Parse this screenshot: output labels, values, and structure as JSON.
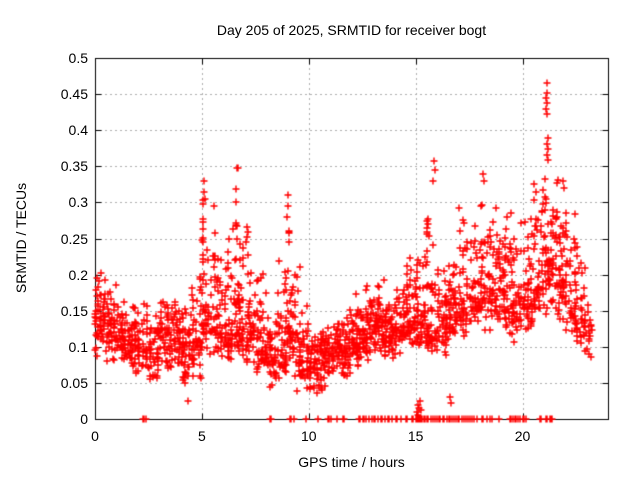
{
  "chart_data": {
    "type": "scatter",
    "title": "Day 205 of 2025, SRMTID for receiver bogt",
    "xlabel": "GPS time / hours",
    "ylabel": "SRMTID / TECUs",
    "xlim": [
      0,
      24
    ],
    "ylim": [
      0,
      0.5
    ],
    "grid": true,
    "legend": "none",
    "marker": "plus",
    "marker_color": "#ff0000",
    "axis_color": "#000000",
    "grid_color": "#b0b0b0",
    "background_color": "#ffffff",
    "seed": 42,
    "xticks": [
      {
        "v": 0,
        "label": "0"
      },
      {
        "v": 5,
        "label": "5"
      },
      {
        "v": 10,
        "label": "10"
      },
      {
        "v": 15,
        "label": "15"
      },
      {
        "v": 20,
        "label": "20"
      }
    ],
    "yticks": [
      {
        "v": 0,
        "label": "0"
      },
      {
        "v": 0.05,
        "label": "0.05"
      },
      {
        "v": 0.1,
        "label": "0.1"
      },
      {
        "v": 0.15,
        "label": "0.15"
      },
      {
        "v": 0.2,
        "label": "0.2"
      },
      {
        "v": 0.25,
        "label": "0.25"
      },
      {
        "v": 0.3,
        "label": "0.3"
      },
      {
        "v": 0.35,
        "label": "0.35"
      },
      {
        "v": 0.4,
        "label": "0.4"
      },
      {
        "v": 0.45,
        "label": "0.45"
      },
      {
        "v": 0.5,
        "label": "0.5"
      }
    ],
    "clusters_note": "dense scatter of ~2200 points; each cluster bin = [x_start_hr, x_end_hr, count, y_min, y_mode, y_max, spike_column_flag] in TECUs",
    "clusters": [
      [
        0.0,
        0.5,
        55,
        0.08,
        0.14,
        0.21,
        0
      ],
      [
        0.5,
        1.0,
        50,
        0.07,
        0.12,
        0.19,
        0
      ],
      [
        1.0,
        1.5,
        45,
        0.07,
        0.11,
        0.17,
        0
      ],
      [
        1.5,
        2.0,
        45,
        0.06,
        0.1,
        0.16,
        0
      ],
      [
        2.0,
        2.5,
        40,
        0.05,
        0.1,
        0.17,
        0
      ],
      [
        2.5,
        3.0,
        40,
        0.05,
        0.09,
        0.15,
        0
      ],
      [
        3.0,
        3.5,
        45,
        0.06,
        0.12,
        0.17,
        0
      ],
      [
        3.5,
        4.0,
        45,
        0.06,
        0.12,
        0.18,
        0
      ],
      [
        4.0,
        4.5,
        45,
        0.04,
        0.09,
        0.16,
        0
      ],
      [
        4.5,
        5.0,
        45,
        0.05,
        0.11,
        0.24,
        0
      ],
      [
        5.0,
        5.5,
        55,
        0.08,
        0.14,
        0.32,
        1
      ],
      [
        5.5,
        6.0,
        50,
        0.08,
        0.13,
        0.3,
        1
      ],
      [
        6.0,
        6.5,
        50,
        0.06,
        0.12,
        0.27,
        0
      ],
      [
        6.5,
        7.0,
        55,
        0.07,
        0.13,
        0.34,
        1
      ],
      [
        7.0,
        7.5,
        50,
        0.06,
        0.12,
        0.29,
        1
      ],
      [
        7.5,
        8.0,
        45,
        0.05,
        0.1,
        0.21,
        0
      ],
      [
        8.0,
        8.5,
        45,
        0.04,
        0.08,
        0.15,
        0
      ],
      [
        8.5,
        9.0,
        45,
        0.05,
        0.1,
        0.24,
        0
      ],
      [
        9.0,
        9.5,
        50,
        0.05,
        0.12,
        0.3,
        1
      ],
      [
        9.5,
        10.0,
        50,
        0.03,
        0.08,
        0.16,
        0
      ],
      [
        10.0,
        10.5,
        50,
        0.03,
        0.07,
        0.12,
        0
      ],
      [
        10.5,
        11.0,
        50,
        0.04,
        0.09,
        0.14,
        0
      ],
      [
        11.0,
        11.5,
        50,
        0.06,
        0.1,
        0.15,
        0
      ],
      [
        11.5,
        12.0,
        50,
        0.05,
        0.1,
        0.16,
        0
      ],
      [
        12.0,
        12.5,
        55,
        0.07,
        0.11,
        0.18,
        0
      ],
      [
        12.5,
        13.0,
        55,
        0.08,
        0.12,
        0.19,
        0
      ],
      [
        13.0,
        13.5,
        55,
        0.09,
        0.13,
        0.2,
        0
      ],
      [
        13.5,
        14.0,
        55,
        0.08,
        0.12,
        0.18,
        0
      ],
      [
        14.0,
        14.5,
        50,
        0.09,
        0.13,
        0.21,
        0
      ],
      [
        14.5,
        15.0,
        50,
        0.1,
        0.14,
        0.25,
        0
      ],
      [
        15.0,
        15.5,
        50,
        0.09,
        0.14,
        0.26,
        0
      ],
      [
        15.5,
        16.0,
        50,
        0.08,
        0.13,
        0.34,
        1
      ],
      [
        16.0,
        16.5,
        45,
        0.08,
        0.13,
        0.22,
        0
      ],
      [
        16.5,
        17.0,
        45,
        0.1,
        0.15,
        0.23,
        0
      ],
      [
        17.0,
        17.5,
        45,
        0.1,
        0.16,
        0.3,
        0
      ],
      [
        17.5,
        18.0,
        45,
        0.12,
        0.17,
        0.31,
        0
      ],
      [
        18.0,
        18.5,
        45,
        0.12,
        0.18,
        0.33,
        1
      ],
      [
        18.5,
        19.0,
        45,
        0.13,
        0.18,
        0.3,
        0
      ],
      [
        19.0,
        19.5,
        45,
        0.1,
        0.17,
        0.3,
        0
      ],
      [
        19.5,
        20.0,
        45,
        0.1,
        0.16,
        0.28,
        0
      ],
      [
        20.0,
        20.5,
        45,
        0.12,
        0.17,
        0.3,
        0
      ],
      [
        20.5,
        21.0,
        50,
        0.13,
        0.18,
        0.35,
        0
      ],
      [
        21.0,
        21.5,
        55,
        0.15,
        0.22,
        0.36,
        1
      ],
      [
        21.5,
        22.0,
        50,
        0.12,
        0.19,
        0.35,
        1
      ],
      [
        22.0,
        22.5,
        45,
        0.1,
        0.17,
        0.3,
        0
      ],
      [
        22.5,
        23.0,
        40,
        0.08,
        0.14,
        0.26,
        0
      ],
      [
        23.0,
        23.25,
        15,
        0.07,
        0.12,
        0.2,
        0
      ]
    ],
    "zero_markers_x": [
      2.25,
      2.3,
      2.4,
      8.2,
      8.25,
      9.1,
      9.15,
      9.3,
      9.85,
      10.45,
      10.9,
      10.95,
      11.05,
      11.3,
      11.6,
      11.65,
      12.35,
      12.4,
      12.55,
      12.6,
      12.7,
      12.8,
      12.95,
      13.05,
      13.1,
      13.25,
      13.4,
      13.45,
      13.55,
      13.7,
      13.75,
      13.9,
      14.1,
      14.15,
      14.3,
      14.55,
      14.6,
      14.85,
      14.9,
      15.0,
      15.05,
      15.1,
      15.15,
      15.2,
      15.25,
      15.3,
      15.4,
      15.45,
      15.55,
      15.6,
      15.7,
      15.8,
      15.9,
      16.0,
      16.1,
      16.15,
      16.3,
      16.35,
      16.45,
      16.55,
      16.6,
      16.7,
      16.8,
      16.9,
      17.0,
      17.05,
      17.15,
      17.25,
      17.35,
      17.45,
      17.55,
      17.65,
      17.75,
      17.85,
      18.1,
      18.15,
      18.35,
      18.5,
      18.55,
      18.9,
      19.4,
      19.45,
      19.55,
      19.65,
      19.7,
      19.8,
      19.9,
      20.0,
      20.05,
      20.15,
      20.8,
      20.85,
      21.1,
      21.15,
      21.3,
      21.35,
      21.4
    ],
    "extra_points": [
      [
        4.35,
        0.025
      ],
      [
        5.1,
        0.33
      ],
      [
        5.1,
        0.315
      ],
      [
        5.15,
        0.305
      ],
      [
        6.65,
        0.347
      ],
      [
        6.7,
        0.348
      ],
      [
        6.6,
        0.3
      ],
      [
        9.05,
        0.31
      ],
      [
        9.05,
        0.295
      ],
      [
        9.0,
        0.28
      ],
      [
        15.05,
        0.01
      ],
      [
        15.1,
        0.02
      ],
      [
        15.15,
        0.015
      ],
      [
        15.2,
        0.025
      ],
      [
        15.1,
        0.005
      ],
      [
        15.25,
        0.012
      ],
      [
        15.85,
        0.358
      ],
      [
        15.9,
        0.345
      ],
      [
        15.8,
        0.33
      ],
      [
        16.6,
        0.03
      ],
      [
        16.65,
        0.022
      ],
      [
        18.15,
        0.34
      ],
      [
        18.2,
        0.33
      ],
      [
        21.15,
        0.465
      ],
      [
        21.15,
        0.451
      ],
      [
        21.1,
        0.444
      ],
      [
        21.15,
        0.437
      ],
      [
        21.1,
        0.429
      ],
      [
        21.15,
        0.423
      ],
      [
        21.2,
        0.389
      ],
      [
        21.15,
        0.381
      ],
      [
        21.2,
        0.374
      ],
      [
        21.15,
        0.366
      ],
      [
        21.2,
        0.359
      ],
      [
        21.9,
        0.33
      ],
      [
        21.95,
        0.32
      ]
    ]
  }
}
